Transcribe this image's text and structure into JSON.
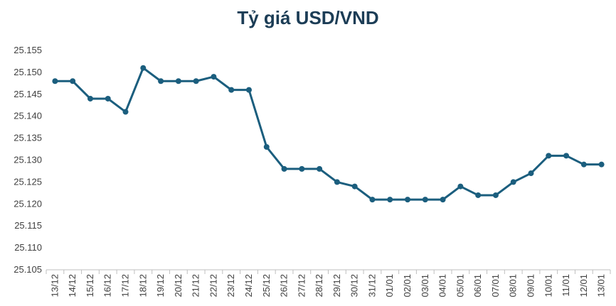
{
  "chart_data": {
    "type": "line",
    "title": "Tỷ giá USD/VND",
    "xlabel": "",
    "ylabel": "",
    "ylim": [
      25.105,
      25.155
    ],
    "yticks": [
      "25.105",
      "25.110",
      "25.115",
      "25.120",
      "25.125",
      "25.130",
      "25.135",
      "25.140",
      "25.145",
      "25.150",
      "25.155"
    ],
    "grid": false,
    "line_color": "#1b5e7e",
    "categories": [
      "13/12",
      "14/12",
      "15/12",
      "16/12",
      "17/12",
      "18/12",
      "19/12",
      "20/12",
      "21/12",
      "22/12",
      "23/12",
      "24/12",
      "25/12",
      "26/12",
      "27/12",
      "28/12",
      "29/12",
      "30/12",
      "31/12",
      "01/01",
      "02/01",
      "03/01",
      "04/01",
      "05/01",
      "06/01",
      "07/01",
      "08/01",
      "09/01",
      "10/01",
      "11/01",
      "12/01",
      "13/01"
    ],
    "series": [
      {
        "name": "USD/VND",
        "values": [
          25.148,
          25.148,
          25.144,
          25.144,
          25.141,
          25.151,
          25.148,
          25.148,
          25.148,
          25.149,
          25.146,
          25.146,
          25.133,
          25.128,
          25.128,
          25.128,
          25.125,
          25.124,
          25.121,
          25.121,
          25.121,
          25.121,
          25.121,
          25.124,
          25.122,
          25.122,
          25.125,
          25.127,
          25.131,
          25.131,
          25.129,
          25.129
        ]
      }
    ]
  }
}
